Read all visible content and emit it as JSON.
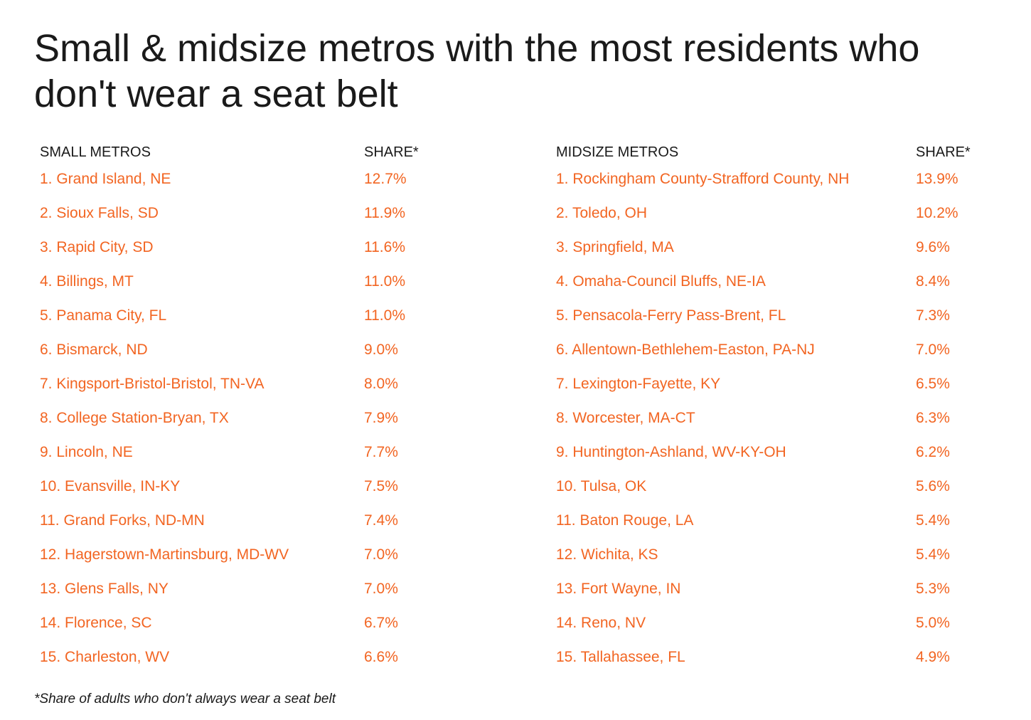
{
  "title": "Small & midsize metros with the most residents who don't wear a seat belt",
  "footnote": "*Share of adults who don't always wear a seat belt",
  "colors": {
    "accent": "#f26522",
    "text": "#1a1a1a",
    "background": "#ffffff"
  },
  "chart_data": [
    {
      "type": "table",
      "columns": [
        "SMALL METROS",
        "SHARE*"
      ],
      "rows": [
        [
          "1. Grand Island, NE",
          "12.7%"
        ],
        [
          "2. Sioux Falls, SD",
          "11.9%"
        ],
        [
          "3. Rapid City, SD",
          "11.6%"
        ],
        [
          "4. Billings, MT",
          "11.0%"
        ],
        [
          "5. Panama City, FL",
          "11.0%"
        ],
        [
          "6. Bismarck, ND",
          "9.0%"
        ],
        [
          "7. Kingsport-Bristol-Bristol, TN-VA",
          "8.0%"
        ],
        [
          "8. College Station-Bryan, TX",
          "7.9%"
        ],
        [
          "9. Lincoln, NE",
          "7.7%"
        ],
        [
          "10. Evansville, IN-KY",
          "7.5%"
        ],
        [
          "11. Grand Forks, ND-MN",
          "7.4%"
        ],
        [
          "12. Hagerstown-Martinsburg, MD-WV",
          "7.0%"
        ],
        [
          "13. Glens Falls, NY",
          "7.0%"
        ],
        [
          "14. Florence, SC",
          "6.7%"
        ],
        [
          "15. Charleston, WV",
          "6.6%"
        ]
      ]
    },
    {
      "type": "table",
      "columns": [
        "MIDSIZE METROS",
        "SHARE*"
      ],
      "rows": [
        [
          "1. Rockingham County-Strafford County, NH",
          "13.9%"
        ],
        [
          "2. Toledo, OH",
          "10.2%"
        ],
        [
          "3. Springfield, MA",
          "9.6%"
        ],
        [
          "4. Omaha-Council Bluffs, NE-IA",
          "8.4%"
        ],
        [
          "5. Pensacola-Ferry Pass-Brent, FL",
          "7.3%"
        ],
        [
          "6. Allentown-Bethlehem-Easton, PA-NJ",
          "7.0%"
        ],
        [
          "7. Lexington-Fayette, KY",
          "6.5%"
        ],
        [
          "8. Worcester, MA-CT",
          "6.3%"
        ],
        [
          "9. Huntington-Ashland, WV-KY-OH",
          "6.2%"
        ],
        [
          "10. Tulsa, OK",
          "5.6%"
        ],
        [
          "11. Baton Rouge, LA",
          "5.4%"
        ],
        [
          "12. Wichita, KS",
          "5.4%"
        ],
        [
          "13. Fort Wayne, IN",
          "5.3%"
        ],
        [
          "14. Reno, NV",
          "5.0%"
        ],
        [
          "15. Tallahassee, FL",
          "4.9%"
        ]
      ]
    }
  ]
}
